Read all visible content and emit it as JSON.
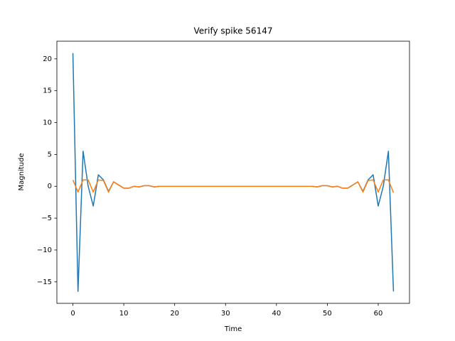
{
  "chart_data": {
    "type": "line",
    "title": "Verify spike 56147",
    "xlabel": "Time",
    "ylabel": "Magnitude",
    "x": [
      0,
      1,
      2,
      3,
      4,
      5,
      6,
      7,
      8,
      9,
      10,
      11,
      12,
      13,
      14,
      15,
      16,
      17,
      18,
      19,
      20,
      21,
      22,
      23,
      24,
      25,
      26,
      27,
      28,
      29,
      30,
      31,
      32,
      33,
      34,
      35,
      36,
      37,
      38,
      39,
      40,
      41,
      42,
      43,
      44,
      45,
      46,
      47,
      48,
      49,
      50,
      51,
      52,
      53,
      54,
      55,
      56,
      57,
      58,
      59,
      60,
      61,
      62,
      63
    ],
    "series": [
      {
        "color": "#1f77b4",
        "values": [
          20.9,
          -16.5,
          5.5,
          0.0,
          -3.1,
          1.8,
          1.0,
          -0.8,
          0.7,
          0.2,
          -0.3,
          -0.3,
          0.0,
          -0.1,
          0.1,
          0.1,
          -0.1,
          0.0,
          0,
          0,
          0,
          0,
          0,
          0,
          0,
          0,
          0,
          0,
          0,
          0,
          0,
          0,
          0,
          0,
          0,
          0,
          0,
          0,
          0,
          0,
          0,
          0,
          0,
          0,
          0,
          0,
          0,
          0.0,
          -0.1,
          0.1,
          0.1,
          -0.1,
          0.0,
          -0.3,
          -0.3,
          0.2,
          0.7,
          -0.8,
          1.0,
          1.8,
          -3.1,
          0.0,
          5.5,
          -16.5
        ]
      },
      {
        "color": "#ff7f0e",
        "values": [
          1.0,
          -0.9,
          1.0,
          1.0,
          -0.9,
          1.0,
          0.9,
          -0.9,
          0.7,
          0.2,
          -0.3,
          -0.3,
          0.0,
          -0.1,
          0.1,
          0.1,
          -0.1,
          0.0,
          0,
          0,
          0,
          0,
          0,
          0,
          0,
          0,
          0,
          0,
          0,
          0,
          0,
          0,
          0,
          0,
          0,
          0,
          0,
          0,
          0,
          0,
          0,
          0,
          0,
          0,
          0,
          0,
          0,
          0.0,
          -0.1,
          0.1,
          0.1,
          -0.1,
          0.0,
          -0.3,
          -0.3,
          0.2,
          0.7,
          -0.9,
          0.9,
          1.0,
          -0.9,
          1.0,
          1.0,
          -1.0
        ]
      }
    ],
    "xlim": [
      -3.15,
      66.15
    ],
    "ylim": [
      -18.37,
      22.77
    ],
    "xticks": [
      0,
      10,
      20,
      30,
      40,
      50,
      60
    ],
    "yticks": [
      {
        "value": -15,
        "label": "−15"
      },
      {
        "value": -10,
        "label": "−10"
      },
      {
        "value": -5,
        "label": "−5"
      },
      0,
      5,
      10,
      15,
      20
    ],
    "grid": false
  }
}
